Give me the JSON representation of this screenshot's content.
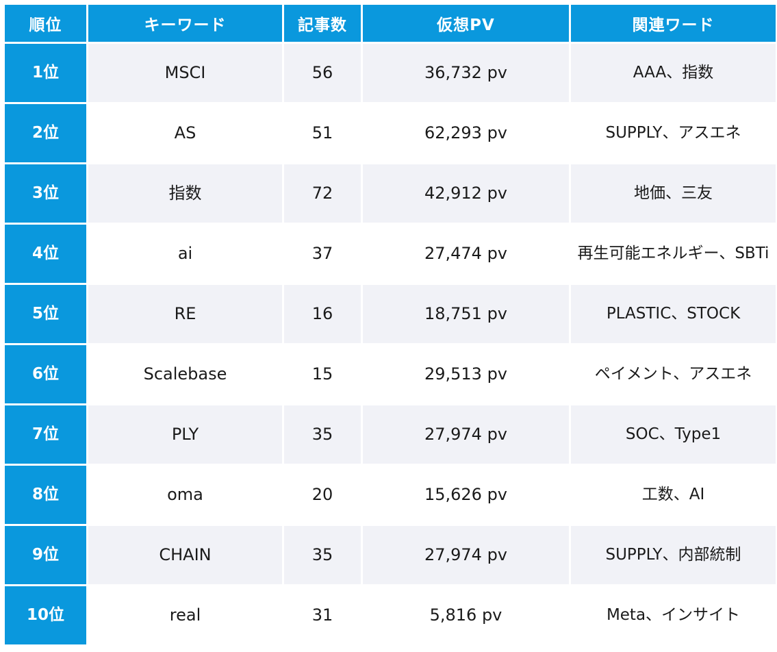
{
  "table": {
    "headers": {
      "rank": "順位",
      "keyword": "キーワード",
      "article_count": "記事数",
      "virtual_pv": "仮想PV",
      "related_words": "関連ワード"
    },
    "rows": [
      {
        "rank": "1位",
        "keyword": "MSCI",
        "article_count": "56",
        "virtual_pv": "36,732 pv",
        "related_words": "AAA、指数"
      },
      {
        "rank": "2位",
        "keyword": "AS",
        "article_count": "51",
        "virtual_pv": "62,293 pv",
        "related_words": "SUPPLY、アスエネ"
      },
      {
        "rank": "3位",
        "keyword": "指数",
        "article_count": "72",
        "virtual_pv": "42,912 pv",
        "related_words": "地価、三友"
      },
      {
        "rank": "4位",
        "keyword": "ai",
        "article_count": "37",
        "virtual_pv": "27,474 pv",
        "related_words": "再生可能エネルギー、SBTi"
      },
      {
        "rank": "5位",
        "keyword": "RE",
        "article_count": "16",
        "virtual_pv": "18,751 pv",
        "related_words": "PLASTIC、STOCK"
      },
      {
        "rank": "6位",
        "keyword": "Scalebase",
        "article_count": "15",
        "virtual_pv": "29,513 pv",
        "related_words": "ペイメント、アスエネ"
      },
      {
        "rank": "7位",
        "keyword": "PLY",
        "article_count": "35",
        "virtual_pv": "27,974 pv",
        "related_words": "SOC、Type1"
      },
      {
        "rank": "8位",
        "keyword": "oma",
        "article_count": "20",
        "virtual_pv": "15,626 pv",
        "related_words": "工数、AI"
      },
      {
        "rank": "9位",
        "keyword": "CHAIN",
        "article_count": "35",
        "virtual_pv": "27,974 pv",
        "related_words": "SUPPLY、内部統制"
      },
      {
        "rank": "10位",
        "keyword": "real",
        "article_count": "31",
        "virtual_pv": "5,816 pv",
        "related_words": "Meta、インサイト"
      }
    ]
  },
  "colors": {
    "header_bg": "#0a98dd",
    "header_text": "#ffffff",
    "row_stripe": "#f1f2f7",
    "row_plain": "#ffffff"
  }
}
